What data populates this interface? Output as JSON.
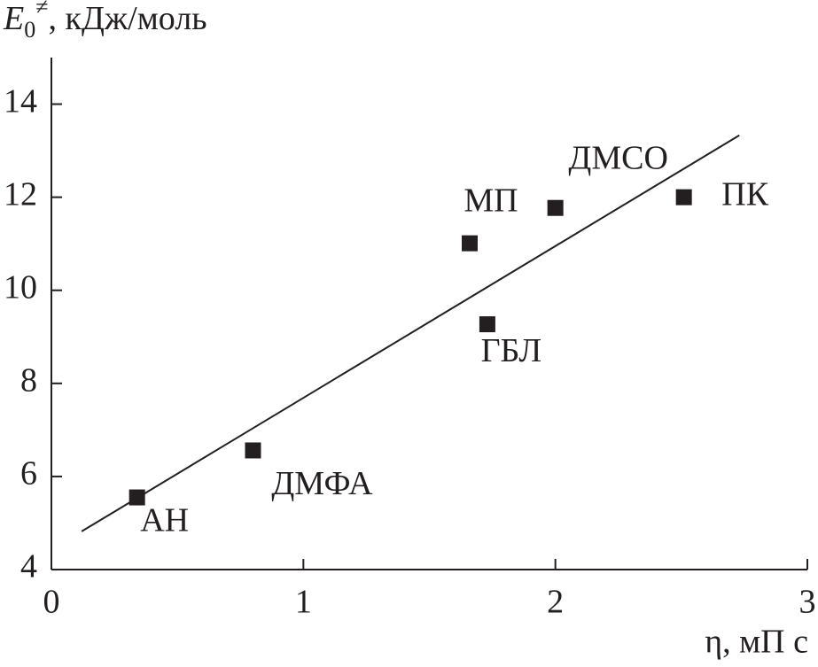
{
  "chart_data": {
    "type": "scatter",
    "y_label": {
      "symbol": "E",
      "subscript": "0",
      "superscript": "≠",
      "text": ", кДж/моль"
    },
    "x_label": "η, мП с",
    "xlim": [
      0,
      3
    ],
    "xticks": [
      0,
      1,
      2,
      3
    ],
    "ylim": [
      4,
      15
    ],
    "yticks": [
      4,
      6,
      8,
      10,
      12,
      14
    ],
    "color": "#231f20",
    "x": [
      0.34,
      0.8,
      1.66,
      1.73,
      2.0,
      2.51
    ],
    "values": [
      5.55,
      6.56,
      11.01,
      9.27,
      11.77,
      12.0
    ],
    "labels": [
      "АН",
      "ДМФА",
      "МП",
      "ГБЛ",
      "ДМСО",
      "ПК"
    ],
    "fit": {
      "x": [
        0.12,
        2.73
      ],
      "y": [
        4.82,
        13.33
      ]
    }
  }
}
